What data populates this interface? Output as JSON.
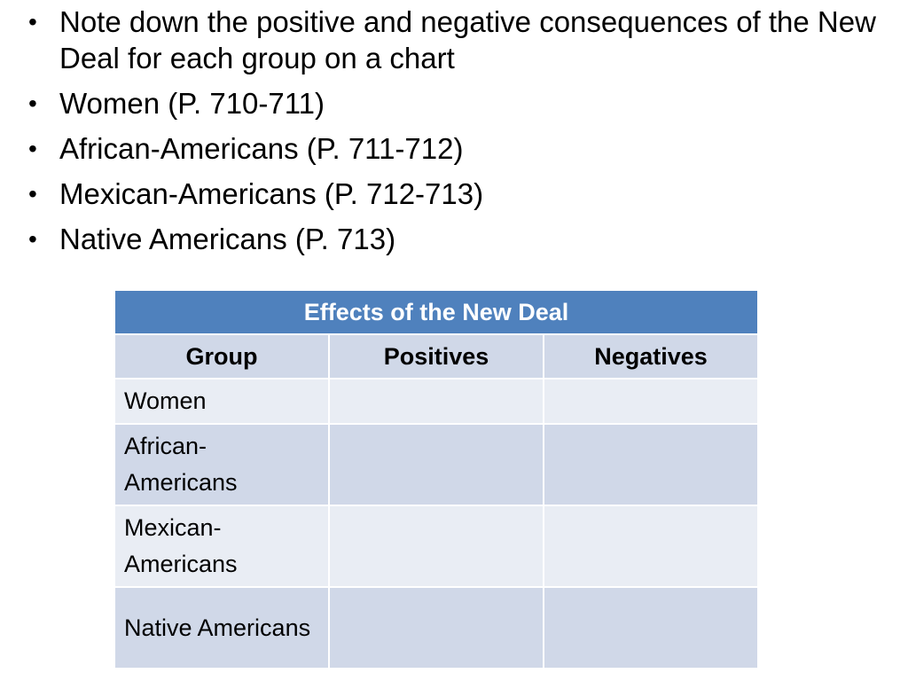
{
  "bullets": [
    "Note down the positive and negative consequences of the New Deal for each group on a chart",
    "Women (P. 710-711)",
    "African-Americans (P. 711-712)",
    "Mexican-Americans (P. 712-713)",
    "Native Americans (P. 713)"
  ],
  "table": {
    "title": "Effects of the New Deal",
    "headers": [
      "Group",
      "Positives",
      "Negatives"
    ],
    "rows": [
      [
        "Women",
        "",
        ""
      ],
      [
        "African-Americans",
        "",
        ""
      ],
      [
        "Mexican-Americans",
        "",
        ""
      ],
      [
        "Native Americans",
        "",
        ""
      ]
    ]
  },
  "colors": {
    "title_bg": "#4f81bd",
    "band_dark": "#d0d8e8",
    "band_light": "#e9edf4"
  }
}
